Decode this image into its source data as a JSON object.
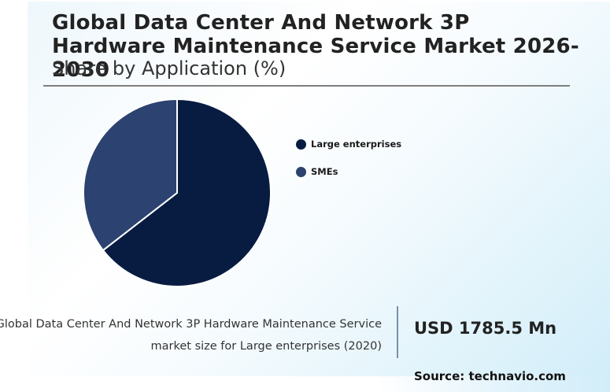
{
  "header": {
    "title": "Global Data Center And Network 3P Hardware Maintenance Service Market 2026-2030",
    "subtitle": "Share by Application (%)"
  },
  "legend": {
    "items": [
      {
        "label": "Large enterprises",
        "color": "#081c42"
      },
      {
        "label": "SMEs",
        "color": "#2c4270"
      }
    ]
  },
  "footer": {
    "caption_line1": "Global Data Center And Network 3P Hardware Maintenance Service",
    "caption_line2": "market size for Large enterprises (2020)",
    "value": "USD 1785.5 Mn",
    "source": "Source: technavio.com"
  },
  "colors": {
    "large_enterprises": "#081c42",
    "smes": "#2c4270",
    "rule": "#7f7f7f",
    "divider": "#7a90a8"
  },
  "chart_data": {
    "type": "pie",
    "title": "Global Data Center And Network 3P Hardware Maintenance Service Market 2026-2030",
    "subtitle": "Share by Application (%)",
    "categories": [
      "Large enterprises",
      "SMEs"
    ],
    "values": [
      64.5,
      35.5
    ],
    "colors": [
      "#081c42",
      "#2c4270"
    ],
    "start_angle": "12 o'clock, clockwise",
    "legend_position": "right",
    "annotation": {
      "label": "Global Data Center And Network 3P Hardware Maintenance Service market size for Large enterprises (2020)",
      "value": "USD 1785.5 Mn"
    },
    "source": "technavio.com"
  }
}
